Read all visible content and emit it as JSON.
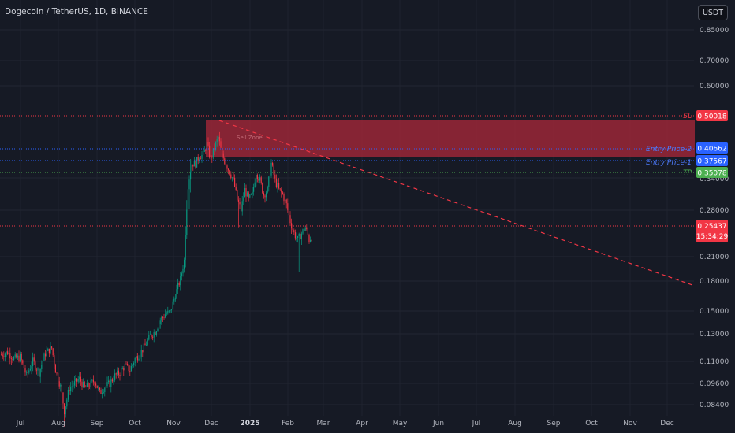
{
  "header": {
    "symbol_label": "Dogecoin / TetherUS, 1D, BINANCE",
    "currency_button": "USDT"
  },
  "price_axis": {
    "ticks": [
      "0.85000",
      "0.70000",
      "0.60000",
      "0.28000",
      "0.21000",
      "0.18000",
      "0.15000",
      "0.13000",
      "0.11000",
      "0.09600",
      "0.08400"
    ],
    "partial_tick": "0.34000"
  },
  "time_axis": {
    "labels": [
      "Jul",
      "Aug",
      "Sep",
      "Oct",
      "Nov",
      "Dec",
      "2025",
      "Feb",
      "Mar",
      "Apr",
      "May",
      "Jun",
      "Jul",
      "Aug",
      "Sep",
      "Oct",
      "Nov",
      "Dec"
    ]
  },
  "levels": {
    "sl": {
      "label": "SL",
      "value": "0.50018",
      "color": "#f23645"
    },
    "entry2": {
      "label": "Entry Price-2",
      "value": "0.40662",
      "color": "#2962ff"
    },
    "entry1": {
      "label": "Entry Price-1",
      "value": "0.37567",
      "color": "#2962ff"
    },
    "tp": {
      "label": "TP",
      "value": "0.35078",
      "color": "#4caf50"
    },
    "current": {
      "value": "0.25437",
      "countdown": "15:34:29",
      "color": "#f23645"
    }
  },
  "zone": {
    "label": "Sell Zone"
  },
  "colors": {
    "up": "#089981",
    "down": "#f23645",
    "background": "#161a25",
    "grid": "#2a2e39",
    "text": "#b2b5be"
  }
}
